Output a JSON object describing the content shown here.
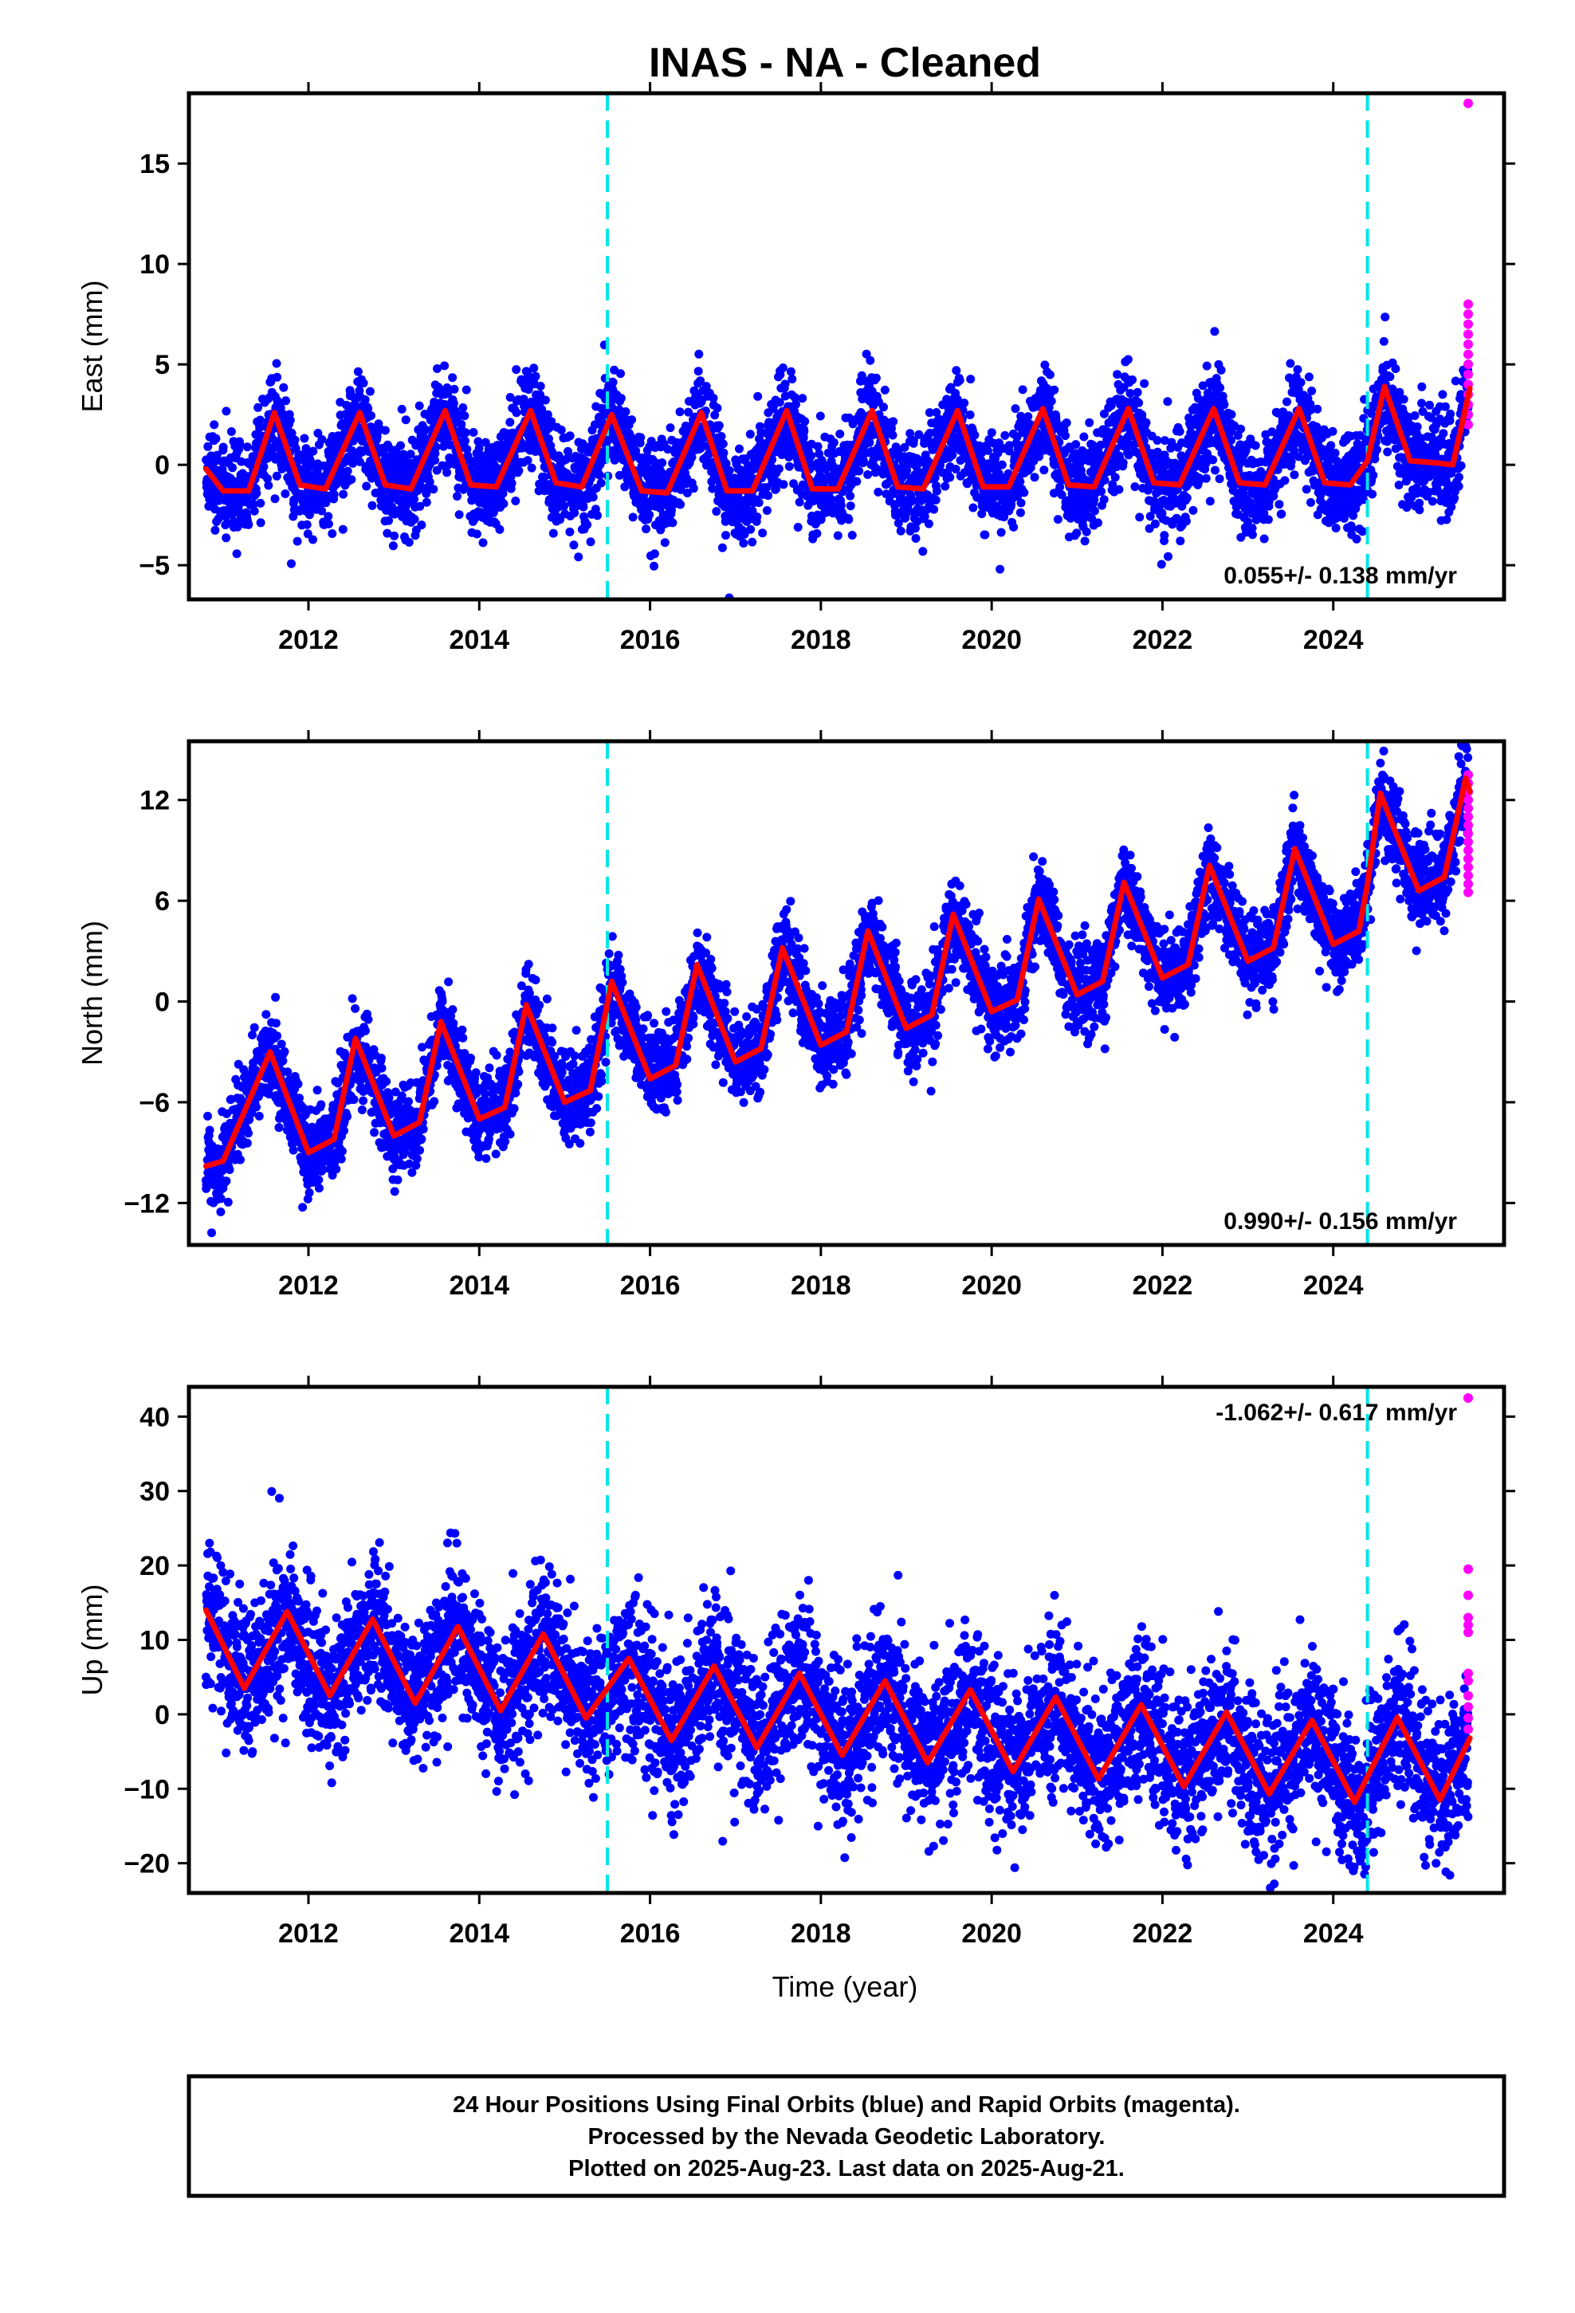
{
  "title": "INAS  - NA - Cleaned",
  "xlabel": "Time (year)",
  "footer_lines": [
    "24 Hour Positions Using Final Orbits (blue) and Rapid Orbits (magenta).",
    "Processed by the Nevada Geodetic Laboratory.",
    "Plotted on 2025-Aug-23. Last data on 2025-Aug-21."
  ],
  "colors": {
    "final_orbits": "#0000ff",
    "rapid_orbits": "#ff00ff",
    "model_fit": "#ff0000",
    "event_lines": "#00e5e5"
  },
  "chart_data": [
    {
      "type": "scatter",
      "name": "east",
      "ylabel": "East (mm)",
      "rate": "0.055+/- 0.138 mm/yr",
      "rate_position": "bottom-right",
      "xlim": [
        2010.6,
        2026.0
      ],
      "ylim": [
        -6.7,
        18.5
      ],
      "xticks": [
        2012,
        2014,
        2016,
        2018,
        2020,
        2022,
        2024
      ],
      "yticks": [
        -5,
        0,
        5,
        10,
        15
      ],
      "event_lines_x": [
        2015.5,
        2024.4
      ],
      "final_orbits": {
        "start": 2010.8,
        "end": 2025.58,
        "trend": 0.055,
        "amplitude": 1.9,
        "noise": 1.2,
        "steps": [
          {
            "x": 2024.4,
            "dy": 1.4
          },
          {
            "x": 2024.9,
            "dy": -1.6
          }
        ]
      },
      "rapid_orbits": {
        "x": 2025.58,
        "y": [
          18.0,
          8.0,
          7.5,
          7.0,
          6.5,
          6.0,
          5.5,
          5.0,
          4.5,
          4.0,
          3.5,
          3.0,
          2.5,
          2.0
        ]
      },
      "model_fit": {
        "x": [
          2010.8,
          2011.0,
          2011.3,
          2011.6,
          2011.9,
          2012.2,
          2012.6,
          2012.9,
          2013.2,
          2013.6,
          2013.9,
          2014.2,
          2014.6,
          2014.9,
          2015.2,
          2015.55,
          2015.9,
          2016.2,
          2016.6,
          2016.9,
          2017.2,
          2017.6,
          2017.9,
          2018.2,
          2018.6,
          2018.9,
          2019.2,
          2019.6,
          2019.9,
          2020.2,
          2020.6,
          2020.9,
          2021.2,
          2021.6,
          2021.9,
          2022.2,
          2022.6,
          2022.9,
          2023.2,
          2023.6,
          2023.9,
          2024.2,
          2024.4,
          2024.6,
          2024.9,
          2025.2,
          2025.4,
          2025.6
        ],
        "y": [
          -0.2,
          -1.3,
          -1.3,
          2.6,
          -1.0,
          -1.2,
          2.6,
          -1.0,
          -1.2,
          2.7,
          -1.0,
          -1.1,
          2.7,
          -0.9,
          -1.1,
          2.5,
          -1.3,
          -1.4,
          2.6,
          -1.3,
          -1.3,
          2.7,
          -1.2,
          -1.2,
          2.7,
          -1.1,
          -1.2,
          2.7,
          -1.1,
          -1.1,
          2.8,
          -1.0,
          -1.1,
          2.8,
          -0.9,
          -1.0,
          2.8,
          -0.9,
          -1.0,
          2.8,
          -0.9,
          -1.0,
          0.2,
          3.9,
          0.2,
          0.1,
          0.0,
          3.8
        ]
      }
    },
    {
      "type": "scatter",
      "name": "north",
      "ylabel": "North (mm)",
      "rate": "0.990+/- 0.156 mm/yr",
      "rate_position": "bottom-right",
      "xlim": [
        2010.6,
        2026.0
      ],
      "ylim": [
        -14.5,
        15.5
      ],
      "xticks": [
        2012,
        2014,
        2016,
        2018,
        2020,
        2022,
        2024
      ],
      "yticks": [
        -12,
        -6,
        0,
        6,
        12
      ],
      "event_lines_x": [
        2015.5,
        2024.4
      ],
      "final_orbits": {
        "start": 2010.8,
        "end": 2025.58,
        "trend": 0.99,
        "amplitude": 3.2,
        "noise": 1.3,
        "steps": [
          {
            "x": 2024.4,
            "dy": 4.5
          }
        ]
      },
      "rapid_orbits": {
        "x": 2025.58,
        "y": [
          13.5,
          13.0,
          12.5,
          12.0,
          11.5,
          11.0,
          10.5,
          10.0,
          9.5,
          9.0,
          8.5,
          8.0,
          7.5,
          7.0,
          6.5
        ]
      },
      "model_fit": {
        "x": [
          2010.8,
          2011.0,
          2011.55,
          2012.0,
          2012.3,
          2012.55,
          2013.0,
          2013.3,
          2013.55,
          2014.0,
          2014.3,
          2014.55,
          2015.0,
          2015.3,
          2015.55,
          2016.0,
          2016.3,
          2016.55,
          2017.0,
          2017.3,
          2017.55,
          2018.0,
          2018.3,
          2018.55,
          2019.0,
          2019.3,
          2019.55,
          2020.0,
          2020.3,
          2020.55,
          2021.0,
          2021.3,
          2021.55,
          2022.0,
          2022.3,
          2022.55,
          2023.0,
          2023.3,
          2023.55,
          2024.0,
          2024.3,
          2024.4,
          2024.55,
          2025.0,
          2025.3,
          2025.55,
          2025.6
        ],
        "y": [
          -9.8,
          -9.5,
          -3.0,
          -9.0,
          -8.2,
          -2.2,
          -8.0,
          -7.2,
          -1.2,
          -7.0,
          -6.3,
          -0.2,
          -6.0,
          -5.3,
          1.2,
          -4.6,
          -3.8,
          2.2,
          -3.6,
          -2.8,
          3.2,
          -2.6,
          -1.8,
          4.2,
          -1.6,
          -0.8,
          5.2,
          -0.6,
          0.1,
          6.1,
          0.4,
          1.2,
          7.1,
          1.4,
          2.2,
          8.1,
          2.4,
          3.2,
          9.1,
          3.4,
          4.2,
          7.0,
          12.4,
          6.6,
          7.4,
          13.3,
          12.5
        ]
      }
    },
    {
      "type": "scatter",
      "name": "up",
      "ylabel": "Up (mm)",
      "rate": "-1.062+/- 0.617 mm/yr",
      "rate_position": "top-right",
      "xlim": [
        2010.6,
        2026.0
      ],
      "ylim": [
        -24,
        44
      ],
      "xticks": [
        2012,
        2014,
        2016,
        2018,
        2020,
        2022,
        2024
      ],
      "yticks": [
        -20,
        -10,
        0,
        10,
        20,
        30,
        40
      ],
      "event_lines_x": [
        2015.5,
        2024.4
      ],
      "final_orbits": {
        "start": 2010.8,
        "end": 2025.58,
        "trend": -1.062,
        "amplitude": 4.5,
        "noise": 5.0,
        "steps": []
      },
      "rapid_orbits": {
        "x": 2025.58,
        "y": [
          42.5,
          19.5,
          16.0,
          13.0,
          12.0,
          11.0,
          5.5,
          4.5,
          2.5,
          1.0,
          -0.5,
          -2.0
        ]
      },
      "model_fit": {
        "x": [
          2010.8,
          2011.25,
          2011.75,
          2012.25,
          2012.75,
          2013.25,
          2013.75,
          2014.25,
          2014.75,
          2015.25,
          2015.75,
          2016.25,
          2016.75,
          2017.25,
          2017.75,
          2018.25,
          2018.75,
          2019.25,
          2019.75,
          2020.25,
          2020.75,
          2021.25,
          2021.75,
          2022.25,
          2022.75,
          2023.25,
          2023.75,
          2024.25,
          2024.75,
          2025.25,
          2025.6
        ],
        "y": [
          14.0,
          3.5,
          13.8,
          2.5,
          12.8,
          1.5,
          11.8,
          0.5,
          10.8,
          -0.5,
          7.5,
          -3.5,
          6.5,
          -4.5,
          5.5,
          -5.5,
          4.5,
          -6.5,
          3.3,
          -7.7,
          2.3,
          -8.7,
          1.3,
          -9.7,
          0.3,
          -10.7,
          -0.8,
          -11.8,
          -0.4,
          -11.5,
          -3.2
        ]
      }
    }
  ]
}
